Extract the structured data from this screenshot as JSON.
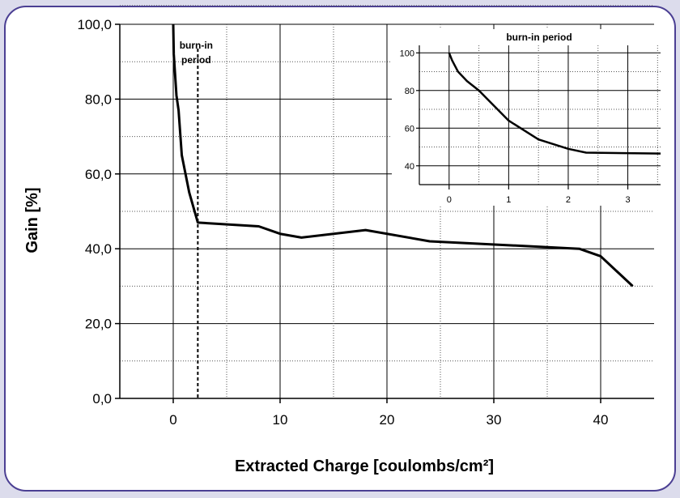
{
  "chart_data": [
    {
      "type": "line",
      "xlabel": "Extracted Charge [coulombs/cm²]",
      "ylabel": "Gain [%]",
      "xlim": [
        -5,
        45
      ],
      "ylim": [
        0,
        100
      ],
      "xticks": [
        0,
        10,
        20,
        30,
        40
      ],
      "xticklabels": [
        "0",
        "10",
        "20",
        "30",
        "40"
      ],
      "yticks": [
        0,
        20,
        40,
        60,
        80,
        100
      ],
      "yticklabels": [
        "0,0",
        "20,0",
        "40,0",
        "60,0",
        "80,0",
        "100,0"
      ],
      "grid": true,
      "annotation": {
        "text": "burn-in period",
        "lines": [
          "burn-in",
          "period"
        ],
        "x": 2.3
      },
      "series": [
        {
          "x": [
            0,
            0.05,
            0.3,
            0.5,
            0.8,
            1.5,
            2.3,
            8,
            10,
            12,
            18,
            24,
            38,
            40,
            43
          ],
          "y": [
            100,
            92,
            81,
            77,
            65,
            55,
            47,
            46,
            44,
            43,
            45,
            42,
            40,
            38,
            30
          ]
        }
      ]
    },
    {
      "type": "line",
      "title": "burn-in period",
      "xlim": [
        -0.5,
        3.55
      ],
      "ylim": [
        30,
        104
      ],
      "xticks": [
        0,
        1,
        2,
        3
      ],
      "xticklabels": [
        "0",
        "1",
        "2",
        "3"
      ],
      "yticks": [
        40,
        60,
        80,
        100
      ],
      "yticklabels": [
        "40",
        "60",
        "80",
        "100"
      ],
      "grid": true,
      "series": [
        {
          "x": [
            0,
            0.05,
            0.15,
            0.3,
            0.5,
            0.75,
            1.0,
            1.5,
            2.0,
            2.3,
            3.55
          ],
          "y": [
            100,
            96,
            90,
            85,
            80,
            72,
            64,
            54,
            49,
            47,
            46.5
          ]
        }
      ]
    }
  ]
}
